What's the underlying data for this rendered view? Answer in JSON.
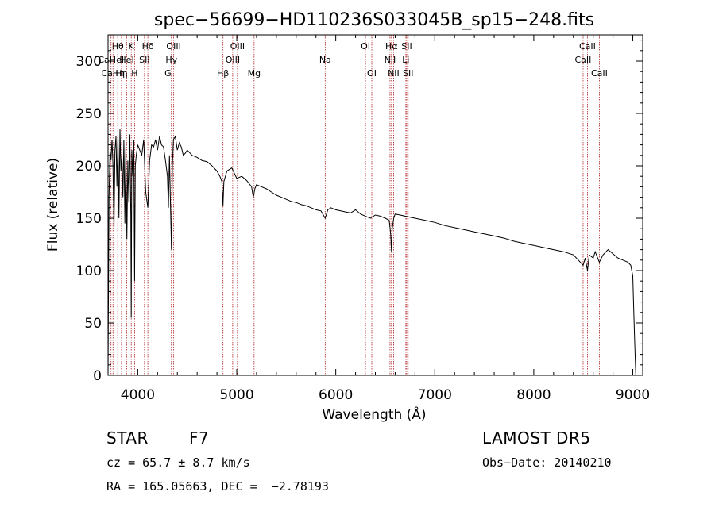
{
  "chart_data": {
    "type": "line",
    "title": "spec−56699−HD110236S033045B_sp15−248.fits",
    "xlabel": "Wavelength (Å)",
    "ylabel": "Flux (relative)",
    "xlim": [
      3700,
      9100
    ],
    "ylim": [
      0,
      325
    ],
    "x_ticks": [
      4000,
      5000,
      6000,
      7000,
      8000,
      9000
    ],
    "y_ticks": [
      0,
      50,
      100,
      150,
      200,
      250,
      300
    ],
    "grid": false,
    "colors": {
      "spectrum": "#000000",
      "lines": "#b02020"
    },
    "spectrum": {
      "x": [
        3700,
        3710,
        3720,
        3730,
        3740,
        3750,
        3760,
        3770,
        3780,
        3790,
        3800,
        3810,
        3820,
        3830,
        3840,
        3850,
        3860,
        3870,
        3880,
        3890,
        3900,
        3910,
        3920,
        3930,
        3934,
        3940,
        3950,
        3960,
        3968,
        3975,
        3985,
        4000,
        4020,
        4040,
        4060,
        4080,
        4102,
        4120,
        4140,
        4160,
        4180,
        4200,
        4220,
        4240,
        4260,
        4280,
        4300,
        4310,
        4320,
        4340,
        4350,
        4360,
        4380,
        4400,
        4420,
        4440,
        4460,
        4480,
        4500,
        4550,
        4600,
        4650,
        4700,
        4750,
        4800,
        4830,
        4850,
        4861,
        4870,
        4900,
        4950,
        5000,
        5050,
        5100,
        5150,
        5167,
        5183,
        5200,
        5250,
        5300,
        5350,
        5400,
        5450,
        5500,
        5550,
        5600,
        5650,
        5700,
        5750,
        5800,
        5850,
        5893,
        5920,
        5950,
        6000,
        6050,
        6100,
        6150,
        6200,
        6250,
        6300,
        6350,
        6400,
        6450,
        6500,
        6540,
        6555,
        6563,
        6570,
        6585,
        6600,
        6650,
        6700,
        6750,
        6800,
        6900,
        7000,
        7100,
        7200,
        7300,
        7400,
        7500,
        7600,
        7700,
        7800,
        7900,
        8000,
        8100,
        8200,
        8300,
        8400,
        8450,
        8498,
        8520,
        8542,
        8560,
        8600,
        8620,
        8662,
        8700,
        8750,
        8800,
        8850,
        8900,
        8950,
        8980,
        9000,
        9010,
        9020,
        9030
      ],
      "y": [
        0,
        170,
        215,
        205,
        225,
        200,
        140,
        215,
        228,
        180,
        230,
        150,
        235,
        195,
        210,
        170,
        225,
        145,
        218,
        130,
        205,
        165,
        230,
        150,
        55,
        215,
        190,
        225,
        90,
        200,
        210,
        220,
        215,
        210,
        225,
        175,
        160,
        205,
        220,
        218,
        225,
        215,
        228,
        220,
        218,
        205,
        190,
        160,
        210,
        120,
        200,
        225,
        228,
        215,
        222,
        218,
        210,
        212,
        215,
        210,
        208,
        205,
        204,
        200,
        195,
        190,
        185,
        162,
        185,
        195,
        198,
        188,
        190,
        186,
        180,
        170,
        178,
        182,
        180,
        178,
        175,
        172,
        170,
        168,
        166,
        165,
        163,
        162,
        160,
        158,
        157,
        150,
        158,
        160,
        158,
        157,
        156,
        155,
        158,
        154,
        152,
        150,
        153,
        152,
        150,
        148,
        135,
        118,
        140,
        150,
        154,
        153,
        152,
        151,
        150,
        148,
        146,
        143,
        141,
        139,
        137,
        135,
        133,
        131,
        128,
        126,
        124,
        122,
        120,
        118,
        115,
        110,
        105,
        112,
        100,
        115,
        112,
        118,
        108,
        115,
        120,
        116,
        112,
        110,
        108,
        105,
        95,
        60,
        30,
        0
      ]
    },
    "line_markers": [
      {
        "label": "Hθ",
        "x": 3798,
        "row": 1
      },
      {
        "label": "CaHeI",
        "x": 3730,
        "row": 2
      },
      {
        "label": "CaHη",
        "x": 3750,
        "row": 3
      },
      {
        "label": "K",
        "x": 3934,
        "row": 1
      },
      {
        "label": "HeI",
        "x": 3889,
        "row": 2
      },
      {
        "label": "Hη",
        "x": 3836,
        "row": 3
      },
      {
        "label": "H",
        "x": 3968,
        "row": 3
      },
      {
        "label": "Hδ",
        "x": 4102,
        "row": 1
      },
      {
        "label": "SII",
        "x": 4068,
        "row": 2
      },
      {
        "label": "OIII",
        "x": 4363,
        "row": 1
      },
      {
        "label": "Hγ",
        "x": 4340,
        "row": 2
      },
      {
        "label": "G",
        "x": 4305,
        "row": 3
      },
      {
        "label": "Hβ",
        "x": 4861,
        "row": 3
      },
      {
        "label": "OIII",
        "x": 5007,
        "row": 1
      },
      {
        "label": "OIII",
        "x": 4959,
        "row": 2
      },
      {
        "label": "Mg",
        "x": 5175,
        "row": 3
      },
      {
        "label": "Na",
        "x": 5893,
        "row": 2
      },
      {
        "label": "OI",
        "x": 6300,
        "row": 1
      },
      {
        "label": "OI",
        "x": 6364,
        "row": 3
      },
      {
        "label": "Hα",
        "x": 6563,
        "row": 1
      },
      {
        "label": "NII",
        "x": 6548,
        "row": 2
      },
      {
        "label": "NII",
        "x": 6584,
        "row": 3
      },
      {
        "label": "SII",
        "x": 6717,
        "row": 1
      },
      {
        "label": "Li",
        "x": 6708,
        "row": 2
      },
      {
        "label": "SII",
        "x": 6731,
        "row": 3
      },
      {
        "label": "CaII",
        "x": 8542,
        "row": 1
      },
      {
        "label": "CaII",
        "x": 8498,
        "row": 2
      },
      {
        "label": "CaII",
        "x": 8662,
        "row": 3
      }
    ]
  },
  "info": {
    "class_label": "STAR",
    "subclass": "F7",
    "survey": "LAMOST DR5",
    "cz": "cz = 65.7 ± 8.7 km/s",
    "obs_date": "Obs−Date: 20140210",
    "coords": "RA = 165.05663, DEC =  −2.78193"
  }
}
